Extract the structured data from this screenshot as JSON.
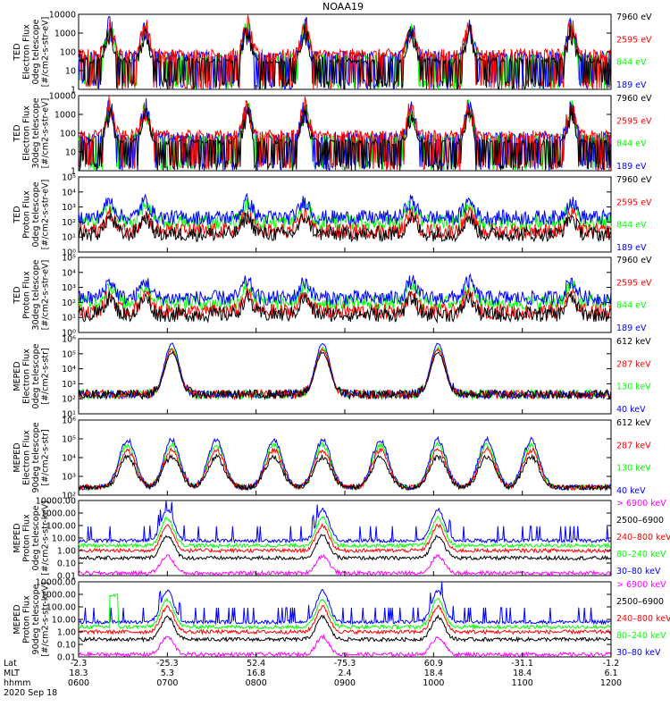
{
  "chart_data": {
    "type": "line",
    "title": "NOAA19",
    "date": "2020 Sep 18",
    "colors": {
      "black": "#000000",
      "red": "#ff0000",
      "green": "#00ff00",
      "blue": "#0000ff",
      "magenta": "#ff00ff"
    },
    "panels": [
      {
        "ylabel": [
          "TED",
          "Electron Flux",
          "0deg telescope",
          "[#/cm2-s-str-eV]"
        ],
        "yticks": [
          "10000",
          "1000",
          "100",
          "10",
          "1"
        ],
        "yscale": "log",
        "ylim_exp": [
          0,
          4
        ],
        "legend": [
          {
            "label": "7960 eV",
            "color": "black"
          },
          {
            "label": "2595 eV",
            "color": "red"
          },
          {
            "label": "844 eV",
            "color": "green"
          },
          {
            "label": "189 eV",
            "color": "blue"
          }
        ],
        "pattern": "ted-electron"
      },
      {
        "ylabel": [
          "TED",
          "Electron Flux",
          "30deg telescope",
          "[#/cm2-s-str-eV]"
        ],
        "yticks": [
          "10000",
          "1000",
          "100",
          "10",
          "1"
        ],
        "yscale": "log",
        "ylim_exp": [
          0,
          4
        ],
        "legend": [
          {
            "label": "7960 eV",
            "color": "black"
          },
          {
            "label": "2595 eV",
            "color": "red"
          },
          {
            "label": "844 eV",
            "color": "green"
          },
          {
            "label": "189 eV",
            "color": "blue"
          }
        ],
        "pattern": "ted-electron"
      },
      {
        "ylabel": [
          "TED",
          "Proton Flux",
          "0deg telescope",
          "[#/cm2-s-str-eV]"
        ],
        "yticks": [
          "10⁵",
          "10⁴",
          "10³",
          "10²",
          "10¹",
          "10⁰"
        ],
        "yscale": "log",
        "ylim_exp": [
          0,
          5
        ],
        "legend": [
          {
            "label": "7960 eV",
            "color": "black"
          },
          {
            "label": "2595 eV",
            "color": "red"
          },
          {
            "label": "844 eV",
            "color": "green"
          },
          {
            "label": "189 eV",
            "color": "blue"
          }
        ],
        "pattern": "ted-proton"
      },
      {
        "ylabel": [
          "TED",
          "Proton Flux",
          "30deg telescope",
          "[#/cm2-s-str-eV]"
        ],
        "yticks": [
          "10⁵",
          "10⁴",
          "10³",
          "10²",
          "10¹",
          "10⁰"
        ],
        "yscale": "log",
        "ylim_exp": [
          0,
          5
        ],
        "legend": [
          {
            "label": "7960 eV",
            "color": "black"
          },
          {
            "label": "2595 eV",
            "color": "red"
          },
          {
            "label": "844 eV",
            "color": "green"
          },
          {
            "label": "189 eV",
            "color": "blue"
          }
        ],
        "pattern": "ted-proton"
      },
      {
        "ylabel": [
          "MEPED",
          "Electron Flux",
          "0deg telescope",
          "[#/cm2-s-str]"
        ],
        "yticks": [
          "10⁶",
          "10⁵",
          "10⁴",
          "10³",
          "10²",
          "10¹"
        ],
        "yscale": "log",
        "ylim_exp": [
          1,
          6
        ],
        "legend": [
          {
            "label": "612 keV",
            "color": "black"
          },
          {
            "label": "287 keV",
            "color": "red"
          },
          {
            "label": "130 keV",
            "color": "green"
          },
          {
            "label": "40 keV",
            "color": "blue"
          }
        ],
        "pattern": "meped-electron-0"
      },
      {
        "ylabel": [
          "MEPED",
          "Electron Flux",
          "90deg telescope",
          "[#/cm2-s-str]"
        ],
        "yticks": [
          "10⁶",
          "10⁵",
          "10⁴",
          "10³",
          "10²"
        ],
        "yscale": "log",
        "ylim_exp": [
          1.6,
          6
        ],
        "legend": [
          {
            "label": "612 keV",
            "color": "black"
          },
          {
            "label": "287 keV",
            "color": "red"
          },
          {
            "label": "130 keV",
            "color": "green"
          },
          {
            "label": "40 keV",
            "color": "blue"
          }
        ],
        "pattern": "meped-electron-90"
      },
      {
        "ylabel": [
          "MEPED",
          "Proton Flux",
          "0deg telescope",
          "[#/cm2-s-str-keV]"
        ],
        "yticks": [
          "10000.00",
          "1000.00",
          "100.00",
          "10.00",
          "1.00",
          "0.10",
          "0.01"
        ],
        "yscale": "log",
        "ylim_exp": [
          -2,
          4
        ],
        "legend": [
          {
            "label": "> 6900 keV",
            "color": "magenta"
          },
          {
            "label": "2500–6900",
            "color": "black"
          },
          {
            "label": "240–800 keV",
            "color": "red"
          },
          {
            "label": "80–240 keV",
            "color": "green"
          },
          {
            "label": "30–80 keV",
            "color": "blue"
          }
        ],
        "pattern": "meped-proton"
      },
      {
        "ylabel": [
          "MEPED",
          "Proton Flux",
          "90deg telescope",
          "[#/cm2-s-str-keV]"
        ],
        "yticks": [
          "10000.00",
          "1000.00",
          "100.00",
          "10.00",
          "1.00",
          "0.10",
          "0.01"
        ],
        "yscale": "log",
        "ylim_exp": [
          -2,
          4
        ],
        "legend": [
          {
            "label": "> 6900 keV",
            "color": "magenta"
          },
          {
            "label": "2500–6900",
            "color": "black"
          },
          {
            "label": "240–800 keV",
            "color": "red"
          },
          {
            "label": "80–240 keV",
            "color": "green"
          },
          {
            "label": "30–80 keV",
            "color": "blue"
          }
        ],
        "pattern": "meped-proton-90"
      }
    ],
    "x_axis": {
      "row_labels": [
        "Lat",
        "MLT",
        "hhmm"
      ],
      "ticks": [
        {
          "lat": "-2.3",
          "mlt": "18.3",
          "hhmm": "0600"
        },
        {
          "lat": "-25.3",
          "mlt": "5.3",
          "hhmm": "0700"
        },
        {
          "lat": "52.4",
          "mlt": "16.8",
          "hhmm": "0800"
        },
        {
          "lat": "-75.3",
          "mlt": "2.4",
          "hhmm": "0900"
        },
        {
          "lat": "60.9",
          "mlt": "18.4",
          "hhmm": "1000"
        },
        {
          "lat": "-31.1",
          "mlt": "18.4",
          "hhmm": "1100"
        },
        {
          "lat": "-1.2",
          "mlt": "6.1",
          "hhmm": "1200"
        }
      ],
      "xlim_hours": [
        6,
        12
      ]
    }
  }
}
